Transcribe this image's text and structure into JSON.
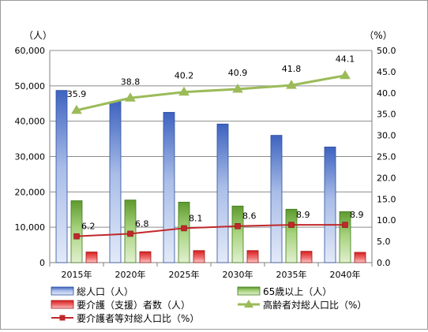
{
  "chart_data": {
    "type": "bar",
    "categories": [
      "2015年",
      "2020年",
      "2025年",
      "2030年",
      "2035年",
      "2040年"
    ],
    "y_left": {
      "unit_label": "（人）",
      "ylim": [
        0,
        60000
      ],
      "ticks": [
        "0",
        "10,000",
        "20,000",
        "30,000",
        "40,000",
        "50,000",
        "60,000"
      ]
    },
    "y_right": {
      "unit_label": "（%）",
      "ylim": [
        0,
        50
      ],
      "ticks": [
        "0.0",
        "5.0",
        "10.0",
        "15.0",
        "20.0",
        "25.0",
        "30.0",
        "35.0",
        "40.0",
        "45.0",
        "50.0"
      ]
    },
    "grid": true,
    "legend_position": "bottom",
    "series": [
      {
        "name": "総人口（人）",
        "kind": "bar",
        "axis": "left",
        "color": "#4f72c4",
        "values": [
          48700,
          45500,
          42500,
          39200,
          36000,
          32700
        ]
      },
      {
        "name": "65歳以上（人）",
        "kind": "bar",
        "axis": "left",
        "color": "#6aa53c",
        "values": [
          17500,
          17700,
          17100,
          16000,
          15100,
          14400
        ]
      },
      {
        "name": "要介護（支援）者数（人）",
        "kind": "bar",
        "axis": "left",
        "color": "#e02828",
        "values": [
          3000,
          3100,
          3400,
          3400,
          3200,
          2900
        ]
      },
      {
        "name": "高齢者対総人口比（%）",
        "kind": "line",
        "axis": "right",
        "color": "#9bbb59",
        "marker": "triangle",
        "values": [
          35.9,
          38.8,
          40.2,
          40.9,
          41.8,
          44.1
        ],
        "labels": [
          "35.9",
          "38.8",
          "40.2",
          "40.9",
          "41.8",
          "44.1"
        ]
      },
      {
        "name": "要介護者等対総人口比（%）",
        "kind": "line",
        "axis": "right",
        "color": "#c0282a",
        "marker": "square",
        "values": [
          6.2,
          6.8,
          8.1,
          8.6,
          8.9,
          8.9
        ],
        "labels": [
          "6.2",
          "6.8",
          "8.1",
          "8.6",
          "8.9",
          "8.9"
        ]
      }
    ]
  }
}
